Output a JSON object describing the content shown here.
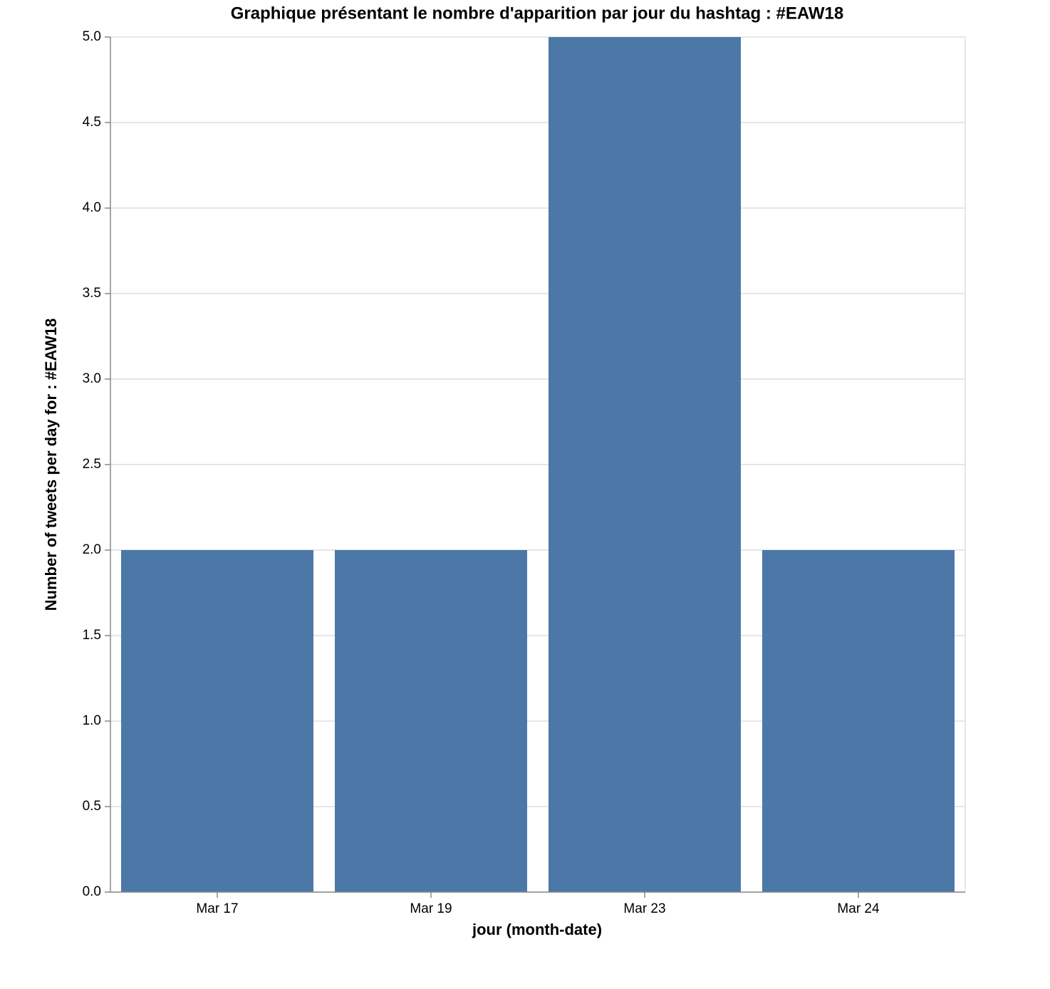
{
  "chart_data": {
    "type": "bar",
    "title": "Graphique présentant le nombre d'apparition par jour du hashtag : #EAW18",
    "x_label": "jour (month-date)",
    "y_label": "Number of tweets per day for : #EAW18",
    "categories": [
      "Mar 17",
      "Mar 19",
      "Mar 23",
      "Mar 24"
    ],
    "values": [
      2,
      2,
      5,
      2
    ],
    "color": "#4c78a8",
    "ylim": [
      0,
      5
    ],
    "yticks": [
      {
        "value": 0,
        "label": "0.0"
      },
      0.5,
      {
        "value": 1,
        "label": "1.0"
      },
      1.5,
      {
        "value": 2,
        "label": "2.0"
      },
      2.5,
      {
        "value": 3,
        "label": "3.0"
      },
      3.5,
      {
        "value": 4,
        "label": "4.0"
      },
      4.5,
      {
        "value": 5,
        "label": "5.0"
      }
    ],
    "grid": true
  }
}
